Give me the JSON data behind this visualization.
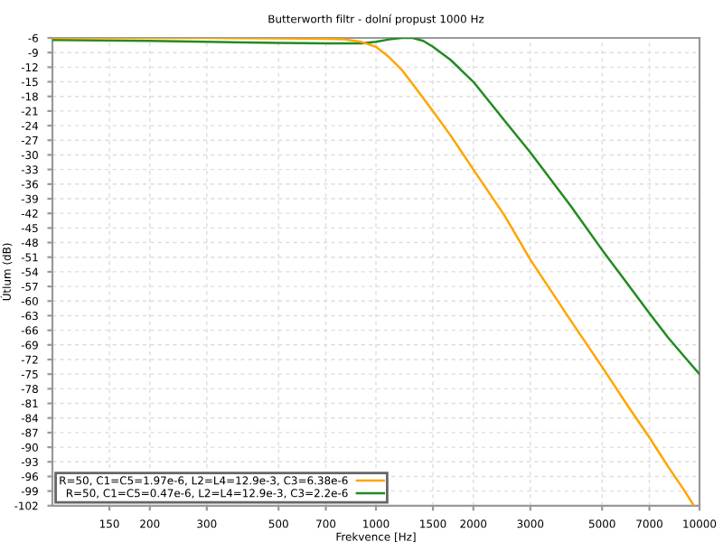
{
  "chart_data": {
    "type": "line",
    "title": "Butterworth filtr - dolní propust 1000 Hz",
    "xlabel": "Frekvence [Hz]",
    "ylabel": "Útlum (dB)",
    "log": "x",
    "xlim": [
      100,
      10000
    ],
    "xticks": [
      150,
      200,
      300,
      500,
      700,
      1000,
      1500,
      2000,
      3000,
      5000,
      7000,
      10000
    ],
    "ylim": [
      -102,
      -6
    ],
    "yticks": [
      -6,
      -9,
      -12,
      -15,
      -18,
      -21,
      -24,
      -27,
      -30,
      -33,
      -36,
      -39,
      -42,
      -45,
      -48,
      -51,
      -54,
      -57,
      -60,
      -63,
      -66,
      -69,
      -72,
      -75,
      -78,
      -81,
      -84,
      -87,
      -90,
      -93,
      -96,
      -99,
      -102
    ],
    "grid": true,
    "legend": "bottom left",
    "marker": "none",
    "line_style": "solid",
    "series": [
      {
        "name": "R=50, C1=C5=1.97e-6, L2=L4=12.9e-3, C3=6.38e-6",
        "color": "#ffa500",
        "x": [
          100,
          200,
          300,
          500,
          700,
          800,
          900,
          1000,
          1100,
          1200,
          1300,
          1500,
          1700,
          2000,
          2500,
          3000,
          4000,
          5000,
          6000,
          7000,
          8000,
          9000,
          9600
        ],
        "values": [
          -6,
          -6,
          -6,
          -6.1,
          -6.2,
          -6.3,
          -6.8,
          -7.8,
          -10,
          -12.5,
          -15.5,
          -21,
          -26,
          -33,
          -42.5,
          -51.5,
          -64,
          -73.5,
          -81.5,
          -88,
          -94,
          -99,
          -102
        ]
      },
      {
        "name": "R=50, C1=C5=0.47e-6, L2=L4=12.9e-3, C3=2.2e-6",
        "color": "#228b22",
        "x": [
          100,
          200,
          300,
          500,
          700,
          900,
          1000,
          1100,
          1200,
          1300,
          1400,
          1500,
          1700,
          2000,
          2500,
          3000,
          4000,
          5000,
          6000,
          7000,
          8000,
          9000,
          10000
        ],
        "values": [
          -6.4,
          -6.6,
          -6.8,
          -7,
          -7.1,
          -7.1,
          -6.8,
          -6.3,
          -6,
          -6,
          -6.6,
          -7.8,
          -10.5,
          -15,
          -23,
          -29.5,
          -40.5,
          -49.5,
          -56.5,
          -62.5,
          -67.5,
          -71.5,
          -75
        ]
      }
    ]
  }
}
